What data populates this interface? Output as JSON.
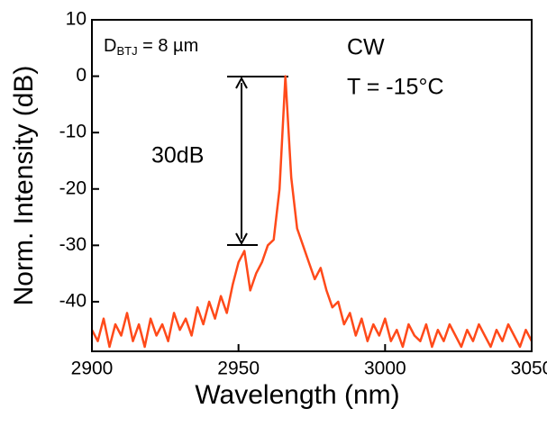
{
  "chart_data": {
    "type": "line",
    "x_label": "Wavelength (nm)",
    "y_label": "Norm. Intensity (dB)",
    "annotations": [
      "CW",
      "T = -15°C",
      "30dB"
    ],
    "device_label": {
      "main": "D",
      "subscript": "BTJ",
      "rest": " = 8 µm"
    },
    "xlim": [
      2900,
      3050
    ],
    "xticks": [
      2900,
      2950,
      3000,
      3050
    ],
    "ylim": [
      -48.8,
      10
    ],
    "yticks": [
      -40,
      -30,
      -20,
      -10,
      0,
      10
    ],
    "series": [
      {
        "color": "#ff4a1a",
        "x": [
          2900,
          2902,
          2904,
          2906,
          2908,
          2910,
          2912,
          2914,
          2916,
          2918,
          2920,
          2922,
          2924,
          2926,
          2928,
          2930,
          2932,
          2934,
          2936,
          2938,
          2940,
          2942,
          2944,
          2946,
          2948,
          2950,
          2952,
          2954,
          2956,
          2958,
          2960,
          2962,
          2964,
          2966,
          2968,
          2970,
          2972,
          2974,
          2976,
          2978,
          2980,
          2982,
          2984,
          2986,
          2988,
          2990,
          2992,
          2994,
          2996,
          2998,
          3000,
          3002,
          3004,
          3006,
          3008,
          3010,
          3012,
          3014,
          3016,
          3018,
          3020,
          3022,
          3024,
          3026,
          3028,
          3030,
          3032,
          3034,
          3036,
          3038,
          3040,
          3042,
          3044,
          3046,
          3048,
          3050
        ],
        "values": [
          -45,
          -47,
          -43,
          -48,
          -44,
          -46,
          -42,
          -47,
          -44,
          -48,
          -43,
          -46,
          -44,
          -47,
          -42,
          -45,
          -43,
          -46,
          -41,
          -44,
          -40,
          -43,
          -39,
          -42,
          -37,
          -33,
          -31,
          -38,
          -35,
          -33,
          -30,
          -29,
          -20,
          0,
          -18,
          -27,
          -30,
          -33,
          -36,
          -34,
          -38,
          -41,
          -40,
          -44,
          -42,
          -46,
          -43,
          -47,
          -44,
          -46,
          -43,
          -47,
          -45,
          -48,
          -44,
          -46,
          -47,
          -44,
          -48,
          -45,
          -47,
          -44,
          -46,
          -48,
          -45,
          -47,
          -44,
          -46,
          -48,
          -45,
          -47,
          -44,
          -46,
          -48,
          -45,
          -47
        ]
      }
    ]
  }
}
